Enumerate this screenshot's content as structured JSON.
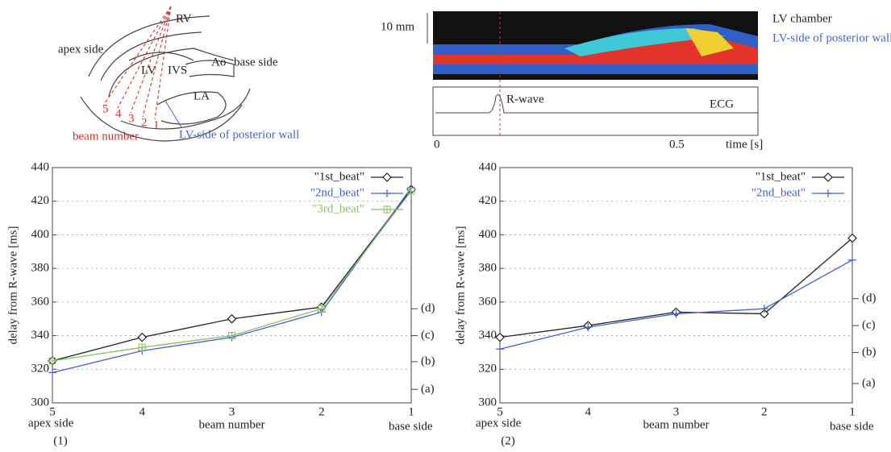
{
  "diagram": {
    "labels": [
      "RV",
      "apex side",
      "Ao",
      "base side",
      "LV",
      "IVS",
      "LA"
    ],
    "beams": [
      "5",
      "4",
      "3",
      "2",
      "1"
    ],
    "beam_label": "beam number",
    "wall_label": "LV-side of posterior wall"
  },
  "mmode": {
    "scale": "10 mm",
    "chamber": "LV chamber",
    "wall": "LV-side of posterior wall",
    "rwave": "R-wave",
    "ecg": "ECG",
    "t0": "0",
    "t1": "0.5",
    "time_label": "time [s]"
  },
  "chart_data": [
    {
      "type": "line",
      "panel": "(1)",
      "ylabel": "delay from R-wave [ms]",
      "xlabel": "beam number",
      "categories": [
        "5",
        "4",
        "3",
        "2",
        "1"
      ],
      "side_labels": [
        "apex side",
        "base side"
      ],
      "ylim": [
        300,
        440
      ],
      "yticks": [
        300,
        320,
        340,
        360,
        380,
        400,
        420,
        440
      ],
      "grid": true,
      "legend": "top-right",
      "series": [
        {
          "name": "\"1st_beat\"",
          "color": "#222222",
          "marker": "diamond",
          "values": [
            325,
            339,
            350,
            357,
            427
          ]
        },
        {
          "name": "\"2nd_beat\"",
          "color": "#4a5fd0",
          "marker": "plus",
          "values": [
            318,
            331,
            339,
            354,
            428
          ]
        },
        {
          "name": "\"3rd_beat\"",
          "color": "#8cc063",
          "marker": "box",
          "values": [
            325,
            333,
            340,
            356,
            426
          ]
        }
      ],
      "annotations": [
        {
          "value": 308,
          "label": "(a)"
        },
        {
          "value": 324.5,
          "label": "(b)"
        },
        {
          "value": 340,
          "label": "(c)"
        },
        {
          "value": 356,
          "label": "(d)"
        }
      ]
    },
    {
      "type": "line",
      "panel": "(2)",
      "ylabel": "delay from R-wave [ms]",
      "xlabel": "beam number",
      "categories": [
        "5",
        "4",
        "3",
        "2",
        "1"
      ],
      "side_labels": [
        "apex side",
        "base side"
      ],
      "ylim": [
        300,
        440
      ],
      "yticks": [
        300,
        320,
        340,
        360,
        380,
        400,
        420,
        440
      ],
      "grid": true,
      "legend": "top-right",
      "series": [
        {
          "name": "\"1st_beat\"",
          "color": "#222222",
          "marker": "diamond",
          "values": [
            339,
            346,
            354,
            353,
            398
          ]
        },
        {
          "name": "\"2nd_beat\"",
          "color": "#4a5fd0",
          "marker": "plus",
          "values": [
            332,
            345,
            353,
            356,
            385
          ]
        }
      ],
      "annotations": [
        {
          "value": 311.5,
          "label": "(a)"
        },
        {
          "value": 330,
          "label": "(b)"
        },
        {
          "value": 346,
          "label": "(c)"
        },
        {
          "value": 362,
          "label": "(d)"
        }
      ]
    }
  ]
}
